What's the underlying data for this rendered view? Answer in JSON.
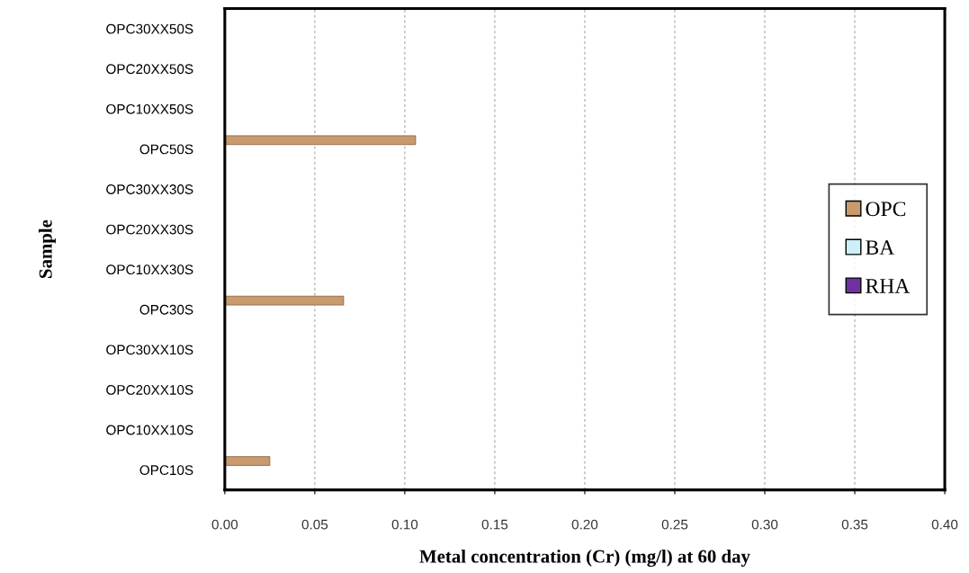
{
  "chart_data": {
    "type": "bar",
    "orientation": "horizontal",
    "xlabel": "Metal concentration (Cr) (mg/l) at 60 day",
    "ylabel": "Sample",
    "categories": [
      "OPC30XX50S",
      "OPC20XX50S",
      "OPC10XX50S",
      "OPC50S",
      "OPC30XX30S",
      "OPC20XX30S",
      "OPC10XX30S",
      "OPC30S",
      "OPC30XX10S",
      "OPC20XX10S",
      "OPC10XX10S",
      "OPC10S"
    ],
    "series": [
      {
        "name": "OPC",
        "color": "#c89a6c",
        "values": [
          null,
          null,
          null,
          0.106,
          null,
          null,
          null,
          0.066,
          null,
          null,
          null,
          0.025
        ]
      },
      {
        "name": "BA",
        "color": "#ccf0f8",
        "values": [
          null,
          null,
          null,
          null,
          null,
          null,
          null,
          null,
          null,
          null,
          null,
          null
        ]
      },
      {
        "name": "RHA",
        "color": "#7030a0",
        "values": [
          null,
          null,
          null,
          null,
          null,
          null,
          null,
          null,
          null,
          null,
          null,
          null
        ]
      }
    ],
    "xlim": [
      0,
      0.4
    ],
    "xticks": [
      {
        "value": 0,
        "label": "0.00"
      },
      {
        "value": 0.05,
        "label": "0.05"
      },
      {
        "value": 0.1,
        "label": "0.10"
      },
      {
        "value": 0.15,
        "label": "0.15"
      },
      {
        "value": 0.2,
        "label": "0.20"
      },
      {
        "value": 0.25,
        "label": "0.25"
      },
      {
        "value": 0.3,
        "label": "0.30"
      },
      {
        "value": 0.35,
        "label": "0.35"
      },
      {
        "value": 0.4,
        "label": "0.40"
      }
    ],
    "grid": "x",
    "legend": "right"
  }
}
